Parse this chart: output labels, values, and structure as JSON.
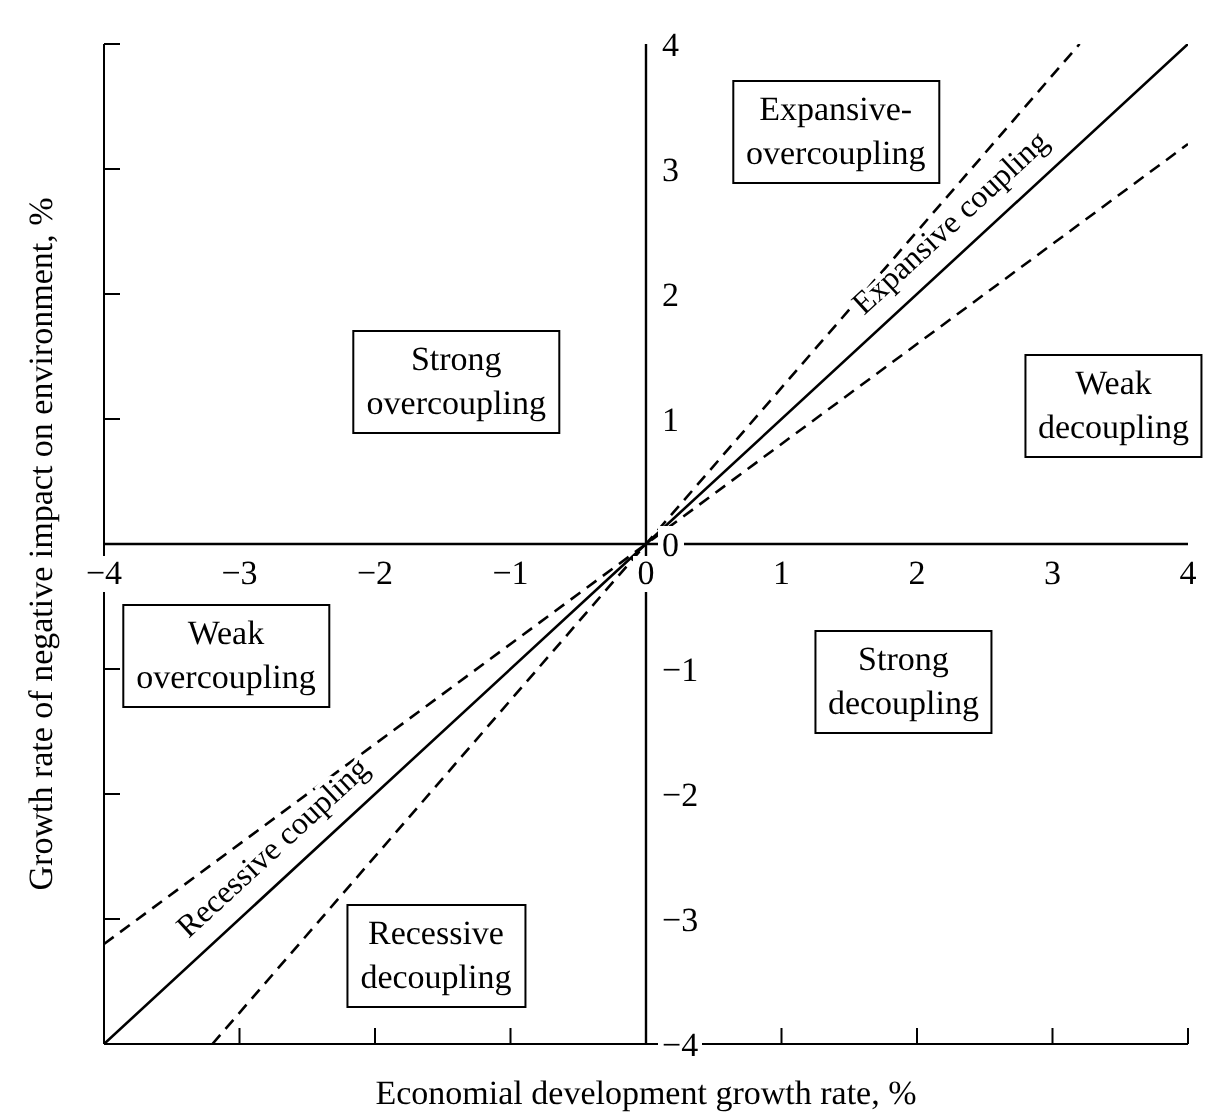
{
  "chart_data": {
    "type": "line",
    "xlabel": "Economial development growth rate, %",
    "ylabel": "Growth rate of negative impact on environment, %",
    "xlim": [
      -4,
      4
    ],
    "ylim": [
      -4,
      4
    ],
    "xticks": [
      {
        "value": -4,
        "label": "−4"
      },
      {
        "value": -3,
        "label": "−3"
      },
      {
        "value": -2,
        "label": "−2"
      },
      {
        "value": -1,
        "label": "−1"
      },
      0,
      1,
      2,
      3,
      4
    ],
    "yticks": [
      {
        "value": -4,
        "label": "−4"
      },
      {
        "value": -3,
        "label": "−3"
      },
      {
        "value": -2,
        "label": "−2"
      },
      {
        "value": -1,
        "label": "−1"
      },
      0,
      1,
      2,
      3,
      4
    ],
    "series": [
      {
        "color": "#000000",
        "line_style": "solid",
        "x": [
          -4,
          0,
          4
        ],
        "values": [
          -4,
          0,
          4
        ]
      },
      {
        "color": "#000000",
        "line_style": "dashed",
        "x": [
          -3.2,
          3.2
        ],
        "values": [
          -4,
          4
        ]
      },
      {
        "color": "#000000",
        "line_style": "dashed",
        "x": [
          -4,
          4
        ],
        "values": [
          -3.2,
          3.2
        ]
      }
    ],
    "annotations": [
      {
        "text": "Expansive coupling",
        "x": 2.4,
        "y": 2.4
      },
      {
        "text": "Recessive coupling",
        "x": -2.6,
        "y": -2.6
      },
      "Expansive-overcoupling",
      "Strong overcoupling",
      "Weak decoupling",
      "Strong decoupling",
      "Weak overcoupling",
      "Recessive decoupling"
    ],
    "grid": false,
    "legend": false,
    "marker": "none"
  }
}
